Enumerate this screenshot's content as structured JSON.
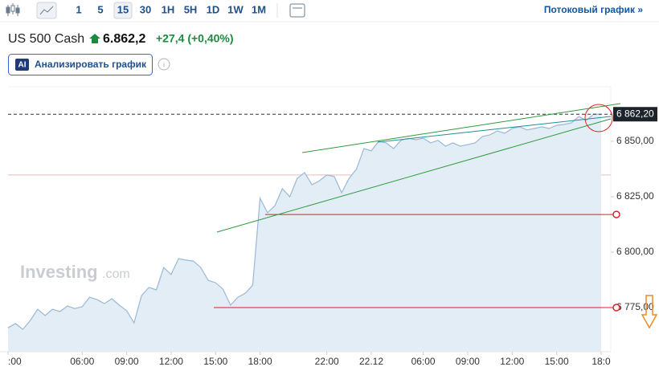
{
  "toolbar": {
    "intervals": [
      "1",
      "5",
      "15",
      "30",
      "1H",
      "5H",
      "1D",
      "1W",
      "1M"
    ],
    "stream_link": "Потоковый график »"
  },
  "quote": {
    "name": "US 500 Cash",
    "price": "6.862,2",
    "change": "+27,4 (+0,40%)"
  },
  "ai_button": {
    "badge": "AI",
    "label": "Анализировать график"
  },
  "watermark": {
    "brand": "Investing",
    "suffix": ".com"
  },
  "chart_data": {
    "type": "area",
    "color": "#9ab8d6",
    "fill": "#e3edf6",
    "categories": [
      ":00",
      null,
      null,
      null,
      null,
      null,
      null,
      null,
      null,
      null,
      "06:00",
      null,
      null,
      null,
      null,
      null,
      "09:00",
      null,
      null,
      null,
      null,
      null,
      "12:00",
      null,
      null,
      null,
      null,
      null,
      "15:00",
      null,
      null,
      null,
      null,
      null,
      "18:00",
      null,
      null,
      null,
      null,
      null,
      null,
      null,
      null,
      "22:00",
      null,
      null,
      null,
      null,
      null,
      "22.12",
      null,
      null,
      null,
      null,
      null,
      null,
      "06:00",
      null,
      null,
      null,
      null,
      null,
      "09:00",
      null,
      null,
      null,
      null,
      null,
      "12:00",
      null,
      null,
      null,
      null,
      null,
      "15:00",
      null,
      null,
      null,
      null,
      null,
      "18:0"
    ],
    "values": [
      6765.9,
      6767.8,
      6765.2,
      6769.2,
      6774.3,
      6771.4,
      6774.3,
      6773.2,
      6775.7,
      6774.6,
      6775.4,
      6779.7,
      6778.6,
      6776.8,
      6779.0,
      6776.1,
      6773.6,
      6768.1,
      6780.4,
      6784.1,
      6783.0,
      6793.1,
      6789.9,
      6797.1,
      6796.4,
      6796.0,
      6793.1,
      6787.3,
      6786.2,
      6783.3,
      6776.1,
      6779.7,
      6781.5,
      6785.1,
      6824.3,
      6817.8,
      6821.0,
      6828.6,
      6825.0,
      6833.3,
      6835.9,
      6830.4,
      6832.2,
      6834.8,
      6834.1,
      6826.8,
      6833.3,
      6837.5,
      6846.7,
      6845.7,
      6850.0,
      6849.3,
      6846.7,
      6850.4,
      6851.4,
      6850.7,
      6851.4,
      6849.3,
      6850.4,
      6847.8,
      6849.3,
      6847.8,
      6848.5,
      6849.3,
      6852.2,
      6852.9,
      6854.7,
      6853.6,
      6855.8,
      6856.5,
      6855.1,
      6855.8,
      6856.5,
      6855.8,
      6857.2,
      6857.6,
      6858.3,
      6861.2,
      6859.4,
      6862.3,
      6862.2
    ],
    "ylim": [
      6755.1,
      6874.6
    ],
    "yticks": [
      {
        "value": 6850,
        "label": "6 850,00"
      },
      {
        "value": 6825,
        "label": "6 825,00"
      },
      {
        "value": 6800,
        "label": "6 800,00"
      },
      {
        "value": 6775,
        "label": "6 775,00"
      }
    ],
    "last_price": {
      "value": 6862.2,
      "label": "6 862,20"
    },
    "reference_line": 6834.8,
    "levels": [
      6817.0,
      6775.0
    ],
    "grid": false
  }
}
